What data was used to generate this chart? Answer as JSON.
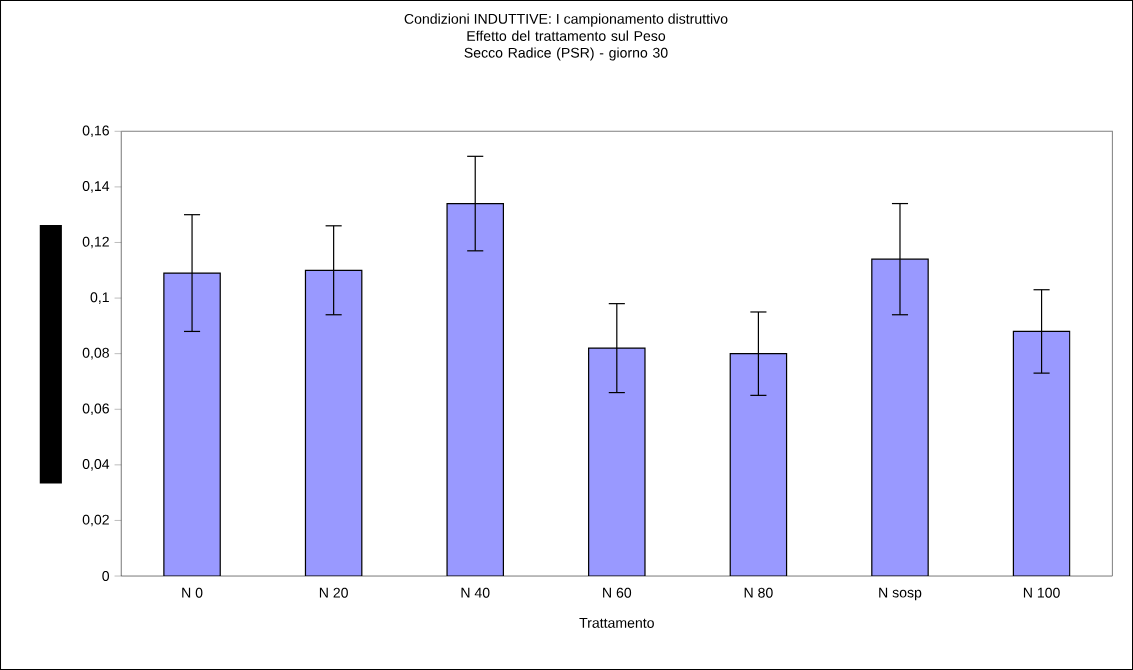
{
  "chart_data": {
    "type": "bar",
    "title": "Condizioni INDUTTIVE: I campionamento distruttivo",
    "subtitle": "Effetto del trattamento sul Peso Secco Radice (PSR) - giorno 30",
    "xlabel": "Trattamento",
    "categories": [
      "N 0",
      "N 20",
      "N 40",
      "N 60",
      "N 80",
      "N sosp",
      "N 100"
    ],
    "values": [
      0.109,
      0.11,
      0.134,
      0.082,
      0.08,
      0.114,
      0.088
    ],
    "errors": [
      0.021,
      0.016,
      0.017,
      0.016,
      0.015,
      0.02,
      0.015
    ],
    "color": "#9999ff",
    "ylim": [
      0,
      0.16
    ],
    "yticks": [
      {
        "value": 0,
        "label": "0"
      },
      {
        "value": 0.02,
        "label": "0,02"
      },
      {
        "value": 0.04,
        "label": "0,04"
      },
      {
        "value": 0.06,
        "label": "0,06"
      },
      {
        "value": 0.08,
        "label": "0,08"
      },
      {
        "value": 0.1,
        "label": "0,1"
      },
      {
        "value": 0.12,
        "label": "0,12"
      },
      {
        "value": 0.14,
        "label": "0,14"
      },
      {
        "value": 0.16,
        "label": "0,16"
      }
    ],
    "grid": false
  }
}
